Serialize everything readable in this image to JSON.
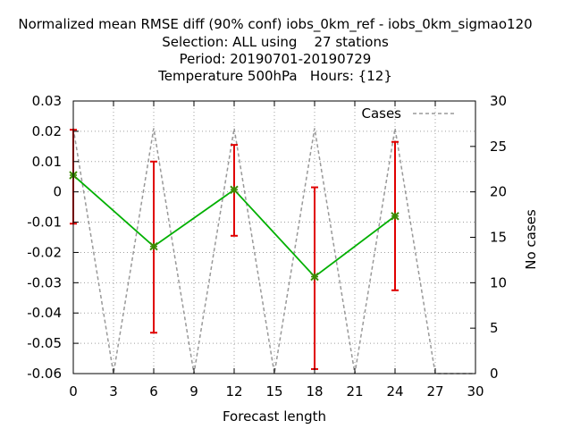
{
  "chart_data": {
    "type": "line",
    "title_lines": [
      "Normalized mean RMSE diff (90% conf) iobs_0km_ref - iobs_0km_sigmao120",
      "Selection: ALL using    27 stations",
      "Period: 20190701-20190729",
      "Temperature 500hPa   Hours: {12}"
    ],
    "xlabel": "Forecast length",
    "y2label": "No cases",
    "xlim": [
      0,
      30
    ],
    "ylim": [
      -0.06,
      0.03
    ],
    "y2lim": [
      0,
      30
    ],
    "x_ticks": [
      "0",
      "3",
      "6",
      "9",
      "12",
      "15",
      "18",
      "21",
      "24",
      "27",
      "30"
    ],
    "y_ticks": [
      "-0.06",
      "-0.05",
      "-0.04",
      "-0.03",
      "-0.02",
      "-0.01",
      "0",
      "0.01",
      "0.02",
      "0.03"
    ],
    "y2_ticks": [
      "0",
      "5",
      "10",
      "15",
      "20",
      "25",
      "30"
    ],
    "grid": true,
    "legend_position": "top-right",
    "series": [
      {
        "name": "",
        "color": "#00b000",
        "marker_color": "#3a8a00",
        "error_color": "#e00000",
        "x": [
          0,
          6,
          12,
          18,
          24
        ],
        "values": [
          0.0055,
          -0.018,
          0.0007,
          -0.028,
          -0.008
        ],
        "error_low": [
          -0.0105,
          -0.0465,
          -0.0145,
          -0.0585,
          -0.0325
        ],
        "error_high": [
          0.0205,
          0.01,
          0.0155,
          0.0015,
          0.0165
        ]
      },
      {
        "name": "Cases",
        "axis": "y2",
        "color": "#999999",
        "dashed": true,
        "x": [
          0,
          3,
          6,
          9,
          12,
          15,
          18,
          21,
          24,
          27,
          30
        ],
        "values": [
          27,
          0,
          27,
          0,
          27,
          0,
          27,
          0,
          27,
          0,
          0
        ]
      }
    ]
  }
}
